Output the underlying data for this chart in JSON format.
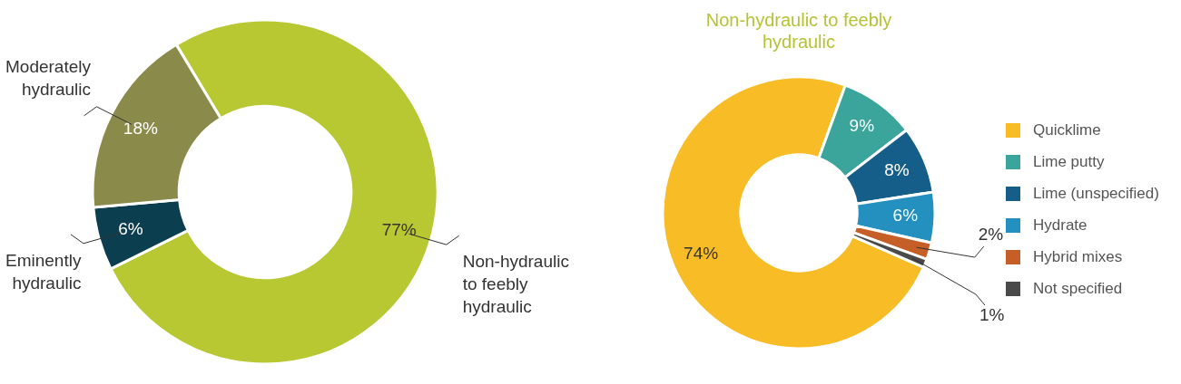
{
  "chart_data": [
    {
      "type": "donut",
      "categories": [
        "Non-hydraulic to feebly hydraulic",
        "Eminently hydraulic",
        "Moderately hydraulic"
      ],
      "values": [
        77,
        6,
        18
      ],
      "colors": [
        "#b8c832",
        "#0b3e4f",
        "#8a8a4a"
      ],
      "value_labels": [
        "77%",
        "6%",
        "18%"
      ],
      "legend": false
    },
    {
      "type": "donut",
      "title": "Non-hydraulic to feebly hydraulic",
      "categories": [
        "Quicklime",
        "Lime putty",
        "Lime (unspecified)",
        "Hydrate",
        "Hybrid mixes",
        "Not specified"
      ],
      "values": [
        74,
        9,
        8,
        6,
        2,
        1
      ],
      "colors": [
        "#f8bc26",
        "#3ba59c",
        "#155e8a",
        "#2390bf",
        "#c55f27",
        "#4a4a4a"
      ],
      "value_labels": [
        "74%",
        "9%",
        "8%",
        "6%",
        "2%",
        "1%"
      ],
      "legend": "right"
    }
  ]
}
